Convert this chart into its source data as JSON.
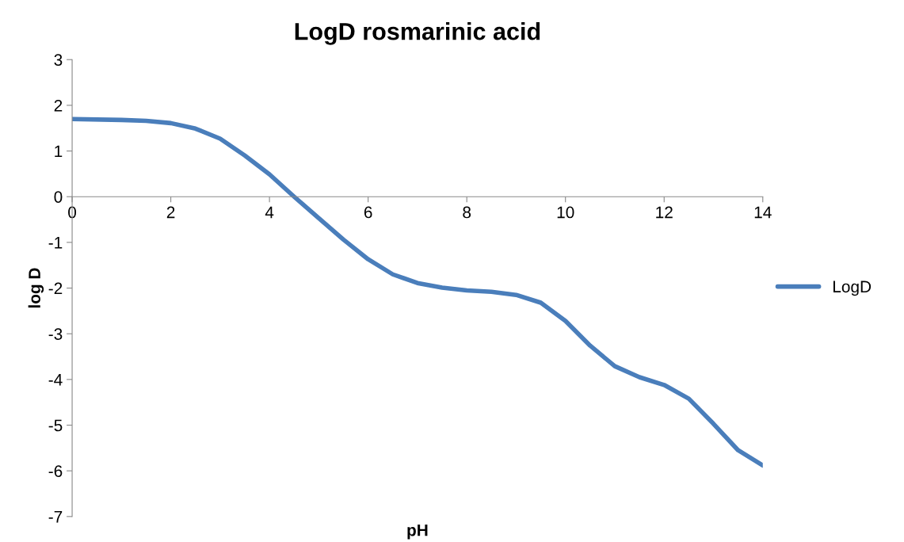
{
  "chart_data": {
    "type": "line",
    "title": "LogD rosmarinic acid",
    "xlabel": "pH",
    "ylabel": "log D",
    "x": [
      0,
      1,
      1.5,
      2,
      2.5,
      3,
      3.5,
      4,
      4.5,
      5,
      5.5,
      6,
      6.5,
      7,
      7.5,
      8,
      8.5,
      9,
      9.5,
      10,
      10.5,
      11,
      11.5,
      12,
      12.5,
      13,
      13.5,
      14
    ],
    "series": [
      {
        "name": "LogD",
        "color": "#4a7ebb",
        "values": [
          1.7,
          1.68,
          1.66,
          1.61,
          1.49,
          1.27,
          0.9,
          0.49,
          0.0,
          -0.47,
          -0.94,
          -1.37,
          -1.7,
          -1.89,
          -1.99,
          -2.05,
          -2.08,
          -2.15,
          -2.32,
          -2.72,
          -3.26,
          -3.71,
          -3.95,
          -4.12,
          -4.42,
          -4.97,
          -5.55,
          -5.88
        ]
      }
    ],
    "xlim": [
      0,
      14
    ],
    "xticks": [
      0,
      2,
      4,
      6,
      8,
      10,
      12,
      14
    ],
    "ylim": [
      -7,
      3
    ],
    "yticks": [
      -7,
      -6,
      -5,
      -4,
      -3,
      -2,
      -1,
      0,
      1,
      2,
      3
    ],
    "grid": false,
    "legend": "right",
    "marker": "none",
    "line_style": "solid"
  }
}
